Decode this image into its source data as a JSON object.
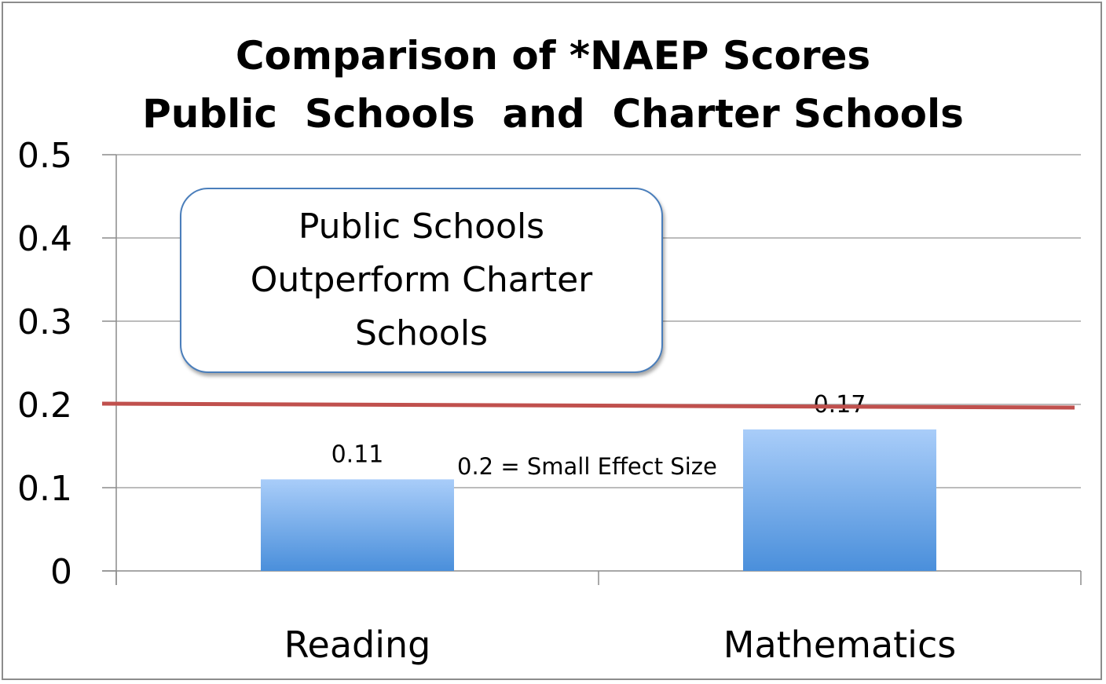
{
  "chart_data": {
    "type": "bar",
    "title_lines": [
      "Comparison of *NAEP Scores",
      "Public  Schools  and  Charter Schools"
    ],
    "categories": [
      "Reading",
      "Mathematics"
    ],
    "values": [
      0.11,
      0.17
    ],
    "data_labels": [
      "0.11",
      "0.17"
    ],
    "ylim": [
      0,
      0.5
    ],
    "y_ticks": [
      "0",
      "0.1",
      "0.2",
      "0.3",
      "0.4",
      "0.5"
    ],
    "y_tick_values": [
      0,
      0.1,
      0.2,
      0.3,
      0.4,
      0.5
    ],
    "grid": true,
    "reference_line": {
      "value": 0.2,
      "label": "0.2 = Small Effect Size",
      "color": "#c0504d"
    },
    "annotation": "Public Schools Outperform Charter Schools",
    "bar_color_top": "#a9cdf9",
    "bar_color_bottom": "#4a8fdb"
  }
}
